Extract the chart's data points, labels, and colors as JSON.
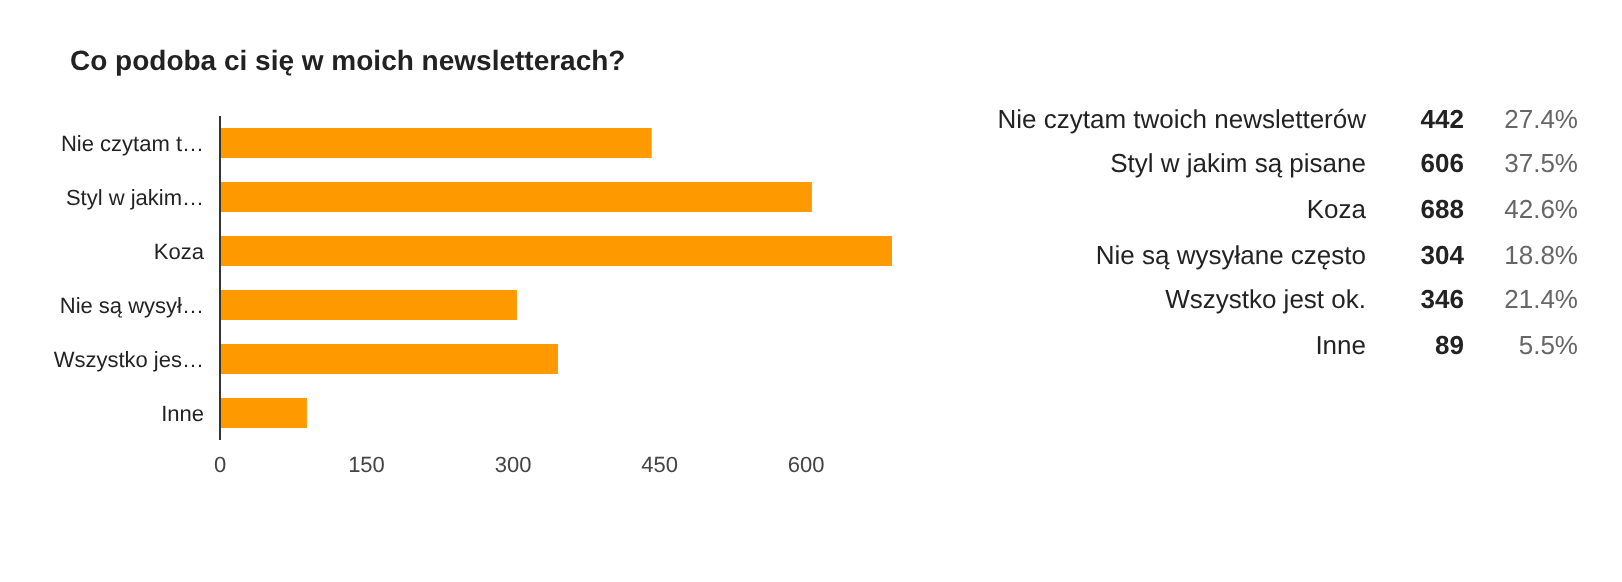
{
  "chart_data": [
    {
      "type": "bar",
      "orientation": "horizontal",
      "title": "Co podoba ci się w moich newsletterach?",
      "categories": [
        "Nie czytam t…",
        "Styl w jakim…",
        "Koza",
        "Nie są wysył…",
        "Wszystko jes…",
        "Inne"
      ],
      "values": [
        442,
        606,
        688,
        304,
        346,
        89
      ],
      "color": "#ff9900",
      "xlim": [
        0,
        688
      ],
      "xticks": [
        0,
        150,
        300,
        450,
        600
      ],
      "grid": false
    },
    {
      "type": "other",
      "categories": [
        "Nie czytam twoich newsletterów",
        "Styl w jakim są pisane",
        "Koza",
        "Nie są wysyłane często",
        "Wszystko jest ok.",
        "Inne"
      ],
      "values": [
        442,
        606,
        688,
        304,
        346,
        89
      ],
      "data_labels": true,
      "annotations": [
        "27.4%",
        "37.5%",
        "42.6%",
        "18.8%",
        "21.4%",
        "5.5%"
      ]
    }
  ]
}
